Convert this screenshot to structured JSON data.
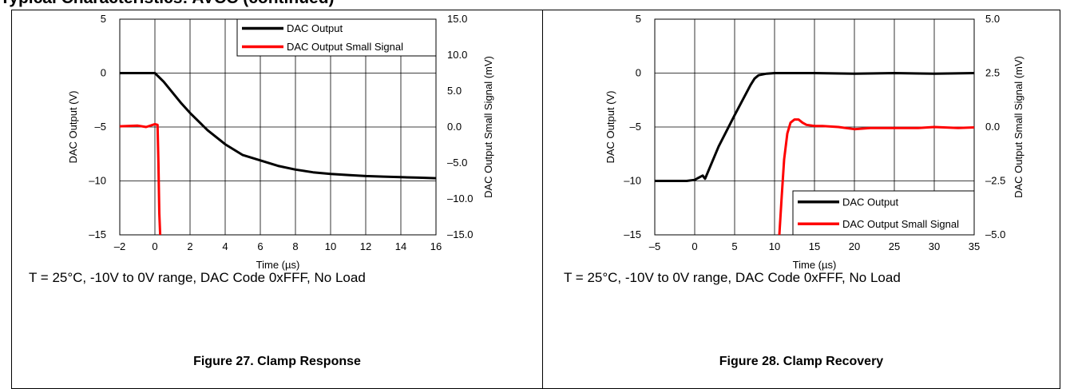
{
  "header": {
    "title": "Typical Characteristics: AVCC (continued)"
  },
  "panels": [
    {
      "condition": "T = 25°C, -10V to 0V range, DAC Code 0xFFF, No Load",
      "caption": "Figure 27. Clamp Response"
    },
    {
      "condition": "T = 25°C, -10V to 0V range, DAC Code 0xFFF, No Load",
      "caption": "Figure 28. Clamp Recovery"
    }
  ],
  "chart_data": [
    {
      "type": "line",
      "title": "",
      "xlabel": "Time (µs)",
      "ylabel": "DAC Output (V)",
      "y2label": "DAC Output Small Signal (mV)",
      "xlim": [
        -2,
        16
      ],
      "ylim": [
        -15,
        5
      ],
      "y2lim": [
        -15,
        15
      ],
      "xticks": [
        "–2",
        "0",
        "2",
        "4",
        "6",
        "8",
        "10",
        "12",
        "14",
        "16"
      ],
      "xtick_values": [
        -2,
        0,
        2,
        4,
        6,
        8,
        10,
        12,
        14,
        16
      ],
      "yticks": [
        "5",
        "0",
        "–5",
        "–10",
        "–15"
      ],
      "ytick_values": [
        5,
        0,
        -5,
        -10,
        -15
      ],
      "y2ticks": [
        "15.0",
        "10.0",
        "5.0",
        "0.0",
        "–5.0",
        "–10.0",
        "–15.0"
      ],
      "y2tick_values": [
        15,
        10,
        5,
        0,
        -5,
        -10,
        -15
      ],
      "grid": true,
      "legend_position": "top-right",
      "series": [
        {
          "name": "DAC Output",
          "color": "#000000",
          "axis": "left",
          "x": [
            -2,
            -1,
            0,
            0.5,
            1,
            1.5,
            2,
            3,
            4,
            5,
            6,
            7,
            8,
            9,
            10,
            11,
            12,
            13,
            14,
            15,
            16
          ],
          "y": [
            0,
            0,
            0,
            -0.8,
            -1.8,
            -2.8,
            -3.7,
            -5.3,
            -6.6,
            -7.6,
            -8.1,
            -8.6,
            -8.95,
            -9.2,
            -9.35,
            -9.45,
            -9.55,
            -9.6,
            -9.65,
            -9.7,
            -9.75
          ]
        },
        {
          "name": "DAC Output Small Signal",
          "color": "#ff0000",
          "axis": "right",
          "x": [
            -2,
            -1,
            -0.5,
            0,
            0.15,
            0.2,
            0.25,
            0.3
          ],
          "y": [
            0.1,
            0.2,
            0.0,
            0.4,
            0.3,
            -5.0,
            -12.0,
            -15.0
          ]
        }
      ]
    },
    {
      "type": "line",
      "title": "",
      "xlabel": "Time (µs)",
      "ylabel": "DAC Output (V)",
      "y2label": "DAC Output Small Signal (mV)",
      "xlim": [
        -5,
        35
      ],
      "ylim": [
        -15,
        5
      ],
      "y2lim": [
        -5,
        5
      ],
      "xticks": [
        "–5",
        "0",
        "5",
        "10",
        "15",
        "20",
        "25",
        "30",
        "35"
      ],
      "xtick_values": [
        -5,
        0,
        5,
        10,
        15,
        20,
        25,
        30,
        35
      ],
      "yticks": [
        "5",
        "0",
        "–5",
        "–10",
        "–15"
      ],
      "ytick_values": [
        5,
        0,
        -5,
        -10,
        -15
      ],
      "y2ticks": [
        "5.0",
        "2.5",
        "0.0",
        "–2.5",
        "–5.0"
      ],
      "y2tick_values": [
        5,
        2.5,
        0,
        -2.5,
        -5
      ],
      "grid": true,
      "legend_position": "bottom-right",
      "series": [
        {
          "name": "DAC Output",
          "color": "#000000",
          "axis": "left",
          "x": [
            -5,
            -1,
            0,
            0.5,
            1,
            1.3,
            3,
            5,
            7,
            7.5,
            8,
            9,
            10,
            15,
            20,
            25,
            30,
            35
          ],
          "y": [
            -10,
            -10,
            -9.9,
            -9.7,
            -9.5,
            -9.8,
            -6.8,
            -3.9,
            -1.1,
            -0.5,
            -0.2,
            -0.05,
            0,
            0,
            -0.05,
            0,
            -0.05,
            0
          ]
        },
        {
          "name": "DAC Output Small Signal",
          "color": "#ff0000",
          "axis": "right",
          "x": [
            10.6,
            10.9,
            11.2,
            11.6,
            12,
            12.5,
            13,
            13.5,
            14,
            15,
            16,
            18,
            20,
            22,
            25,
            28,
            30,
            33,
            35
          ],
          "y": [
            -5,
            -3.2,
            -1.5,
            -0.3,
            0.2,
            0.35,
            0.35,
            0.2,
            0.1,
            0.05,
            0.05,
            0.0,
            -0.1,
            -0.05,
            -0.05,
            -0.05,
            0.0,
            -0.05,
            -0.02
          ]
        }
      ]
    }
  ]
}
